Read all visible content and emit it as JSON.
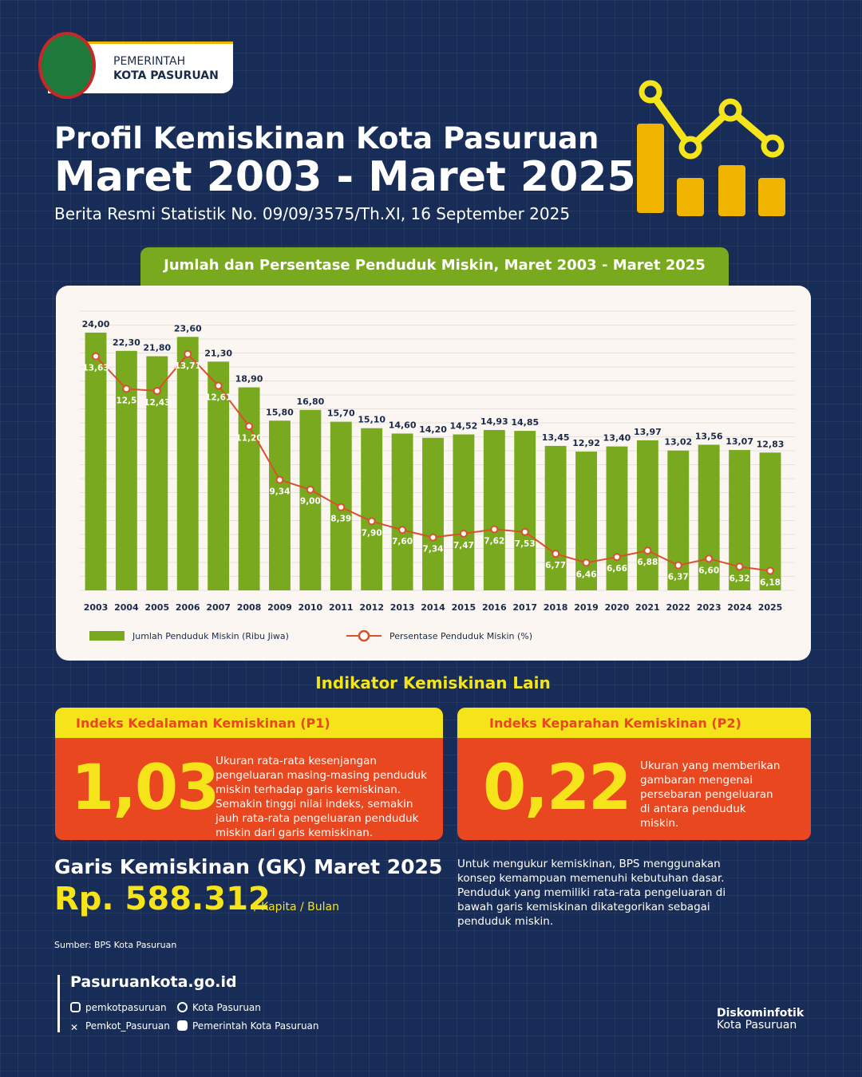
{
  "header": {
    "org_line1": "PEMERINTAH",
    "org_line2": "KOTA PASURUAN"
  },
  "title_line1": "Profil Kemiskinan Kota Pasuruan",
  "title_line2": "Maret 2003 - Maret 2025",
  "subtitle": "Berita Resmi Statistik No. 09/09/3575/Th.XI, 16 September 2025",
  "chart_data": {
    "type": "bar",
    "title": "Jumlah dan Persentase Penduduk Miskin, Maret 2003 - Maret 2025",
    "categories": [
      "2003",
      "2004",
      "2005",
      "2006",
      "2007",
      "2008",
      "2009",
      "2010",
      "2011",
      "2012",
      "2013",
      "2014",
      "2015",
      "2016",
      "2017",
      "2018",
      "2019",
      "2020",
      "2021",
      "2022",
      "2023",
      "2024",
      "2025"
    ],
    "series": [
      {
        "name": "Jumlah Penduduk Miskin (Ribu Jiwa)",
        "type": "bar",
        "color": "#79a91e",
        "values": [
          24,
          22.3,
          21.8,
          23.6,
          21.3,
          18.9,
          15.8,
          16.8,
          15.7,
          15.1,
          14.6,
          14.2,
          14.52,
          14.93,
          14.85,
          13.45,
          12.92,
          13.4,
          13.97,
          13.02,
          13.56,
          13.07,
          12.83
        ],
        "value_labels": [
          "24,00",
          "22,30",
          "21,80",
          "23,60",
          "21,30",
          "18,90",
          "15,80",
          "16,80",
          "15,70",
          "15,10",
          "14,60",
          "14,20",
          "14,52",
          "14,93",
          "14,85",
          "13,45",
          "12,92",
          "13,40",
          "13,97",
          "13,02",
          "13,56",
          "13,07",
          "12,83"
        ]
      },
      {
        "name": "Persentase Penduduk Miskin (%)",
        "type": "line",
        "axis": "y2",
        "color": "#d9512c",
        "values": [
          13.63,
          12.5,
          12.43,
          13.71,
          12.61,
          11.2,
          9.34,
          9,
          8.39,
          7.9,
          7.6,
          7.34,
          7.47,
          7.62,
          7.53,
          6.77,
          6.46,
          6.66,
          6.88,
          6.37,
          6.6,
          6.32,
          6.18
        ],
        "value_labels": [
          "13,63",
          "12,5",
          "12,43",
          "13,71",
          "12,61",
          "11,20",
          "9,34",
          "9,00",
          "8,39",
          "7,90",
          "7,60",
          "7,34",
          "7,47",
          "7,62",
          "7,53",
          "6,77",
          "6,46",
          "6,66",
          "6,88",
          "6,37",
          "6,60",
          "6,32",
          "6,18"
        ]
      }
    ],
    "ylim": [
      0,
      26
    ],
    "y2lim": [
      5.5,
      15.2
    ],
    "legend": "bottom-left"
  },
  "indicators": {
    "heading": "Indikator Kemiskinan Lain",
    "p1": {
      "title": "Indeks Kedalaman Kemiskinan (P1)",
      "value": "1,03",
      "description": "Ukuran rata-rata kesenjangan pengeluaran masing-masing penduduk miskin terhadap garis kemiskinan. Semakin tinggi nilai indeks, semakin jauh rata-rata pengeluaran penduduk miskin dari garis kemiskinan."
    },
    "p2": {
      "title": "Indeks Keparahan Kemiskinan (P2)",
      "value": "0,22",
      "description": "Ukuran yang memberikan gambaran mengenai persebaran pengeluaran di antara penduduk miskin."
    }
  },
  "poverty_line": {
    "title": "Garis Kemiskinan (GK) Maret 2025",
    "value": "Rp. 588.312",
    "unit": "/ Kapita / Bulan",
    "note": "Untuk mengukur kemiskinan, BPS menggunakan konsep kemampuan memenuhi kebutuhan dasar. Penduduk yang memiliki rata-rata pengeluaran di bawah garis kemiskinan dikategorikan sebagai penduduk miskin."
  },
  "source": "Sumber: BPS Kota Pasuruan",
  "footer": {
    "website": "Pasuruankota.go.id",
    "instagram": "pemkotpasuruan",
    "facebook": "Kota Pasuruan",
    "x": "Pemkot_Pasuruan",
    "youtube": "Pemerintah Kota Pasuruan",
    "agency_line1": "Diskominfotik",
    "agency_line2": "Kota Pasuruan"
  }
}
